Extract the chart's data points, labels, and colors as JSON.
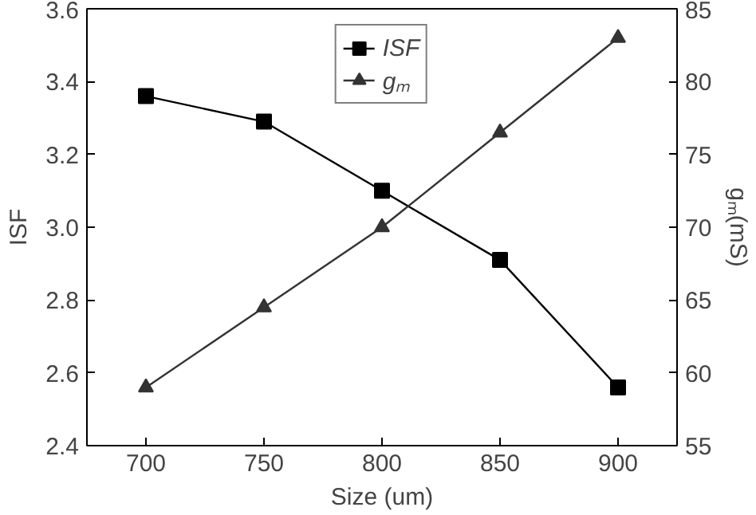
{
  "chart_data": {
    "type": "line",
    "xlabel": "Size (um)",
    "ylabel": "ISF",
    "y2label": "gₘ(mS)",
    "x": [
      700,
      750,
      800,
      850,
      900
    ],
    "series": [
      {
        "name": "ISF",
        "color": "#000000",
        "marker": "square",
        "values": [
          3.36,
          3.29,
          3.1,
          2.91,
          2.56
        ]
      },
      {
        "name": "gₘ",
        "color": "#333333",
        "marker": "triangle",
        "axis": "y2",
        "values": [
          59,
          64.5,
          70,
          76.5,
          83
        ]
      }
    ],
    "xlim": [
      675,
      925
    ],
    "xticks": [
      700,
      750,
      800,
      850,
      900
    ],
    "ylim": [
      2.4,
      3.6
    ],
    "yticks": [
      2.4,
      2.6,
      2.8,
      {
        "value": 3.0,
        "label": "3.0"
      },
      3.2,
      3.4,
      3.6
    ],
    "y2lim": [
      55,
      85
    ],
    "y2ticks": [
      55,
      60,
      65,
      70,
      75,
      80,
      85
    ],
    "legend": "top",
    "grid": false,
    "line_style": "solid"
  }
}
